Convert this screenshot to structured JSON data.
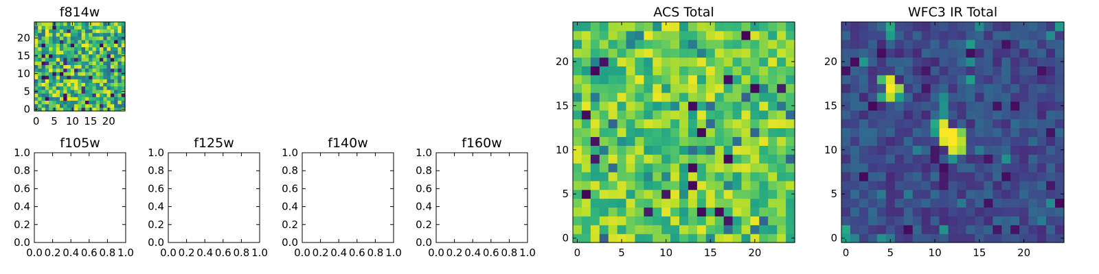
{
  "colormap": "viridis",
  "chart_data": [
    {
      "id": "f814w",
      "type": "heatmap",
      "title": "f814w",
      "grid": false,
      "xlim": [
        -0.5,
        24.5
      ],
      "ylim": [
        -0.5,
        24.5
      ],
      "x_ticks": [
        0,
        5,
        10,
        15,
        20
      ],
      "y_ticks": [
        0,
        5,
        10,
        15,
        20
      ],
      "x_tick_labels": [
        "0",
        "5",
        "10",
        "15",
        "20"
      ],
      "y_tick_labels": [
        "0",
        "5",
        "10",
        "15",
        "20"
      ],
      "values": []
    },
    {
      "id": "f105w",
      "type": "empty",
      "title": "f105w",
      "xlim": [
        0,
        1
      ],
      "ylim": [
        0,
        1
      ],
      "x_ticks": [
        0,
        0.2,
        0.4,
        0.6,
        0.8,
        1.0
      ],
      "y_ticks": [
        0,
        0.2,
        0.4,
        0.6,
        0.8,
        1.0
      ],
      "x_tick_labels": [
        "0.0",
        "0.2",
        "0.4",
        "0.6",
        "0.8",
        "1.0"
      ],
      "y_tick_labels": [
        "0.0",
        "0.2",
        "0.4",
        "0.6",
        "0.8",
        "1.0"
      ]
    },
    {
      "id": "f125w",
      "type": "empty",
      "title": "f125w",
      "xlim": [
        0,
        1
      ],
      "ylim": [
        0,
        1
      ],
      "x_ticks": [
        0,
        0.2,
        0.4,
        0.6,
        0.8,
        1.0
      ],
      "y_ticks": [
        0,
        0.2,
        0.4,
        0.6,
        0.8,
        1.0
      ],
      "x_tick_labels": [
        "0.0",
        "0.2",
        "0.4",
        "0.6",
        "0.8",
        "1.0"
      ],
      "y_tick_labels": [
        "0.0",
        "0.2",
        "0.4",
        "0.6",
        "0.8",
        "1.0"
      ]
    },
    {
      "id": "f140w",
      "type": "empty",
      "title": "f140w",
      "xlim": [
        0,
        1
      ],
      "ylim": [
        0,
        1
      ],
      "x_ticks": [
        0,
        0.2,
        0.4,
        0.6,
        0.8,
        1.0
      ],
      "y_ticks": [
        0,
        0.2,
        0.4,
        0.6,
        0.8,
        1.0
      ],
      "x_tick_labels": [
        "0.0",
        "0.2",
        "0.4",
        "0.6",
        "0.8",
        "1.0"
      ],
      "y_tick_labels": [
        "0.0",
        "0.2",
        "0.4",
        "0.6",
        "0.8",
        "1.0"
      ]
    },
    {
      "id": "f160w",
      "type": "empty",
      "title": "f160w",
      "xlim": [
        0,
        1
      ],
      "ylim": [
        0,
        1
      ],
      "x_ticks": [
        0,
        0.2,
        0.4,
        0.6,
        0.8,
        1.0
      ],
      "y_ticks": [
        0,
        0.2,
        0.4,
        0.6,
        0.8,
        1.0
      ],
      "x_tick_labels": [
        "0.0",
        "0.2",
        "0.4",
        "0.6",
        "0.8",
        "1.0"
      ],
      "y_tick_labels": [
        "0.0",
        "0.2",
        "0.4",
        "0.6",
        "0.8",
        "1.0"
      ]
    },
    {
      "id": "acs-total",
      "type": "heatmap",
      "title": "ACS Total",
      "grid": false,
      "xlim": [
        -0.5,
        24.5
      ],
      "ylim": [
        -0.5,
        24.5
      ],
      "x_ticks": [
        0,
        5,
        10,
        15,
        20
      ],
      "y_ticks": [
        0,
        5,
        10,
        15,
        20
      ],
      "x_tick_labels": [
        "0",
        "5",
        "10",
        "15",
        "20"
      ],
      "y_tick_labels": [
        "0",
        "5",
        "10",
        "15",
        "20"
      ],
      "values": []
    },
    {
      "id": "wfc3-ir-total",
      "type": "heatmap",
      "title": "WFC3 IR Total",
      "grid": false,
      "xlim": [
        -0.5,
        24.5
      ],
      "ylim": [
        -0.5,
        24.5
      ],
      "x_ticks": [
        0,
        5,
        10,
        15,
        20
      ],
      "y_ticks": [
        0,
        5,
        10,
        15,
        20
      ],
      "x_tick_labels": [
        "0",
        "5",
        "10",
        "15",
        "20"
      ],
      "y_tick_labels": [
        "0",
        "5",
        "10",
        "15",
        "20"
      ],
      "values": []
    }
  ]
}
